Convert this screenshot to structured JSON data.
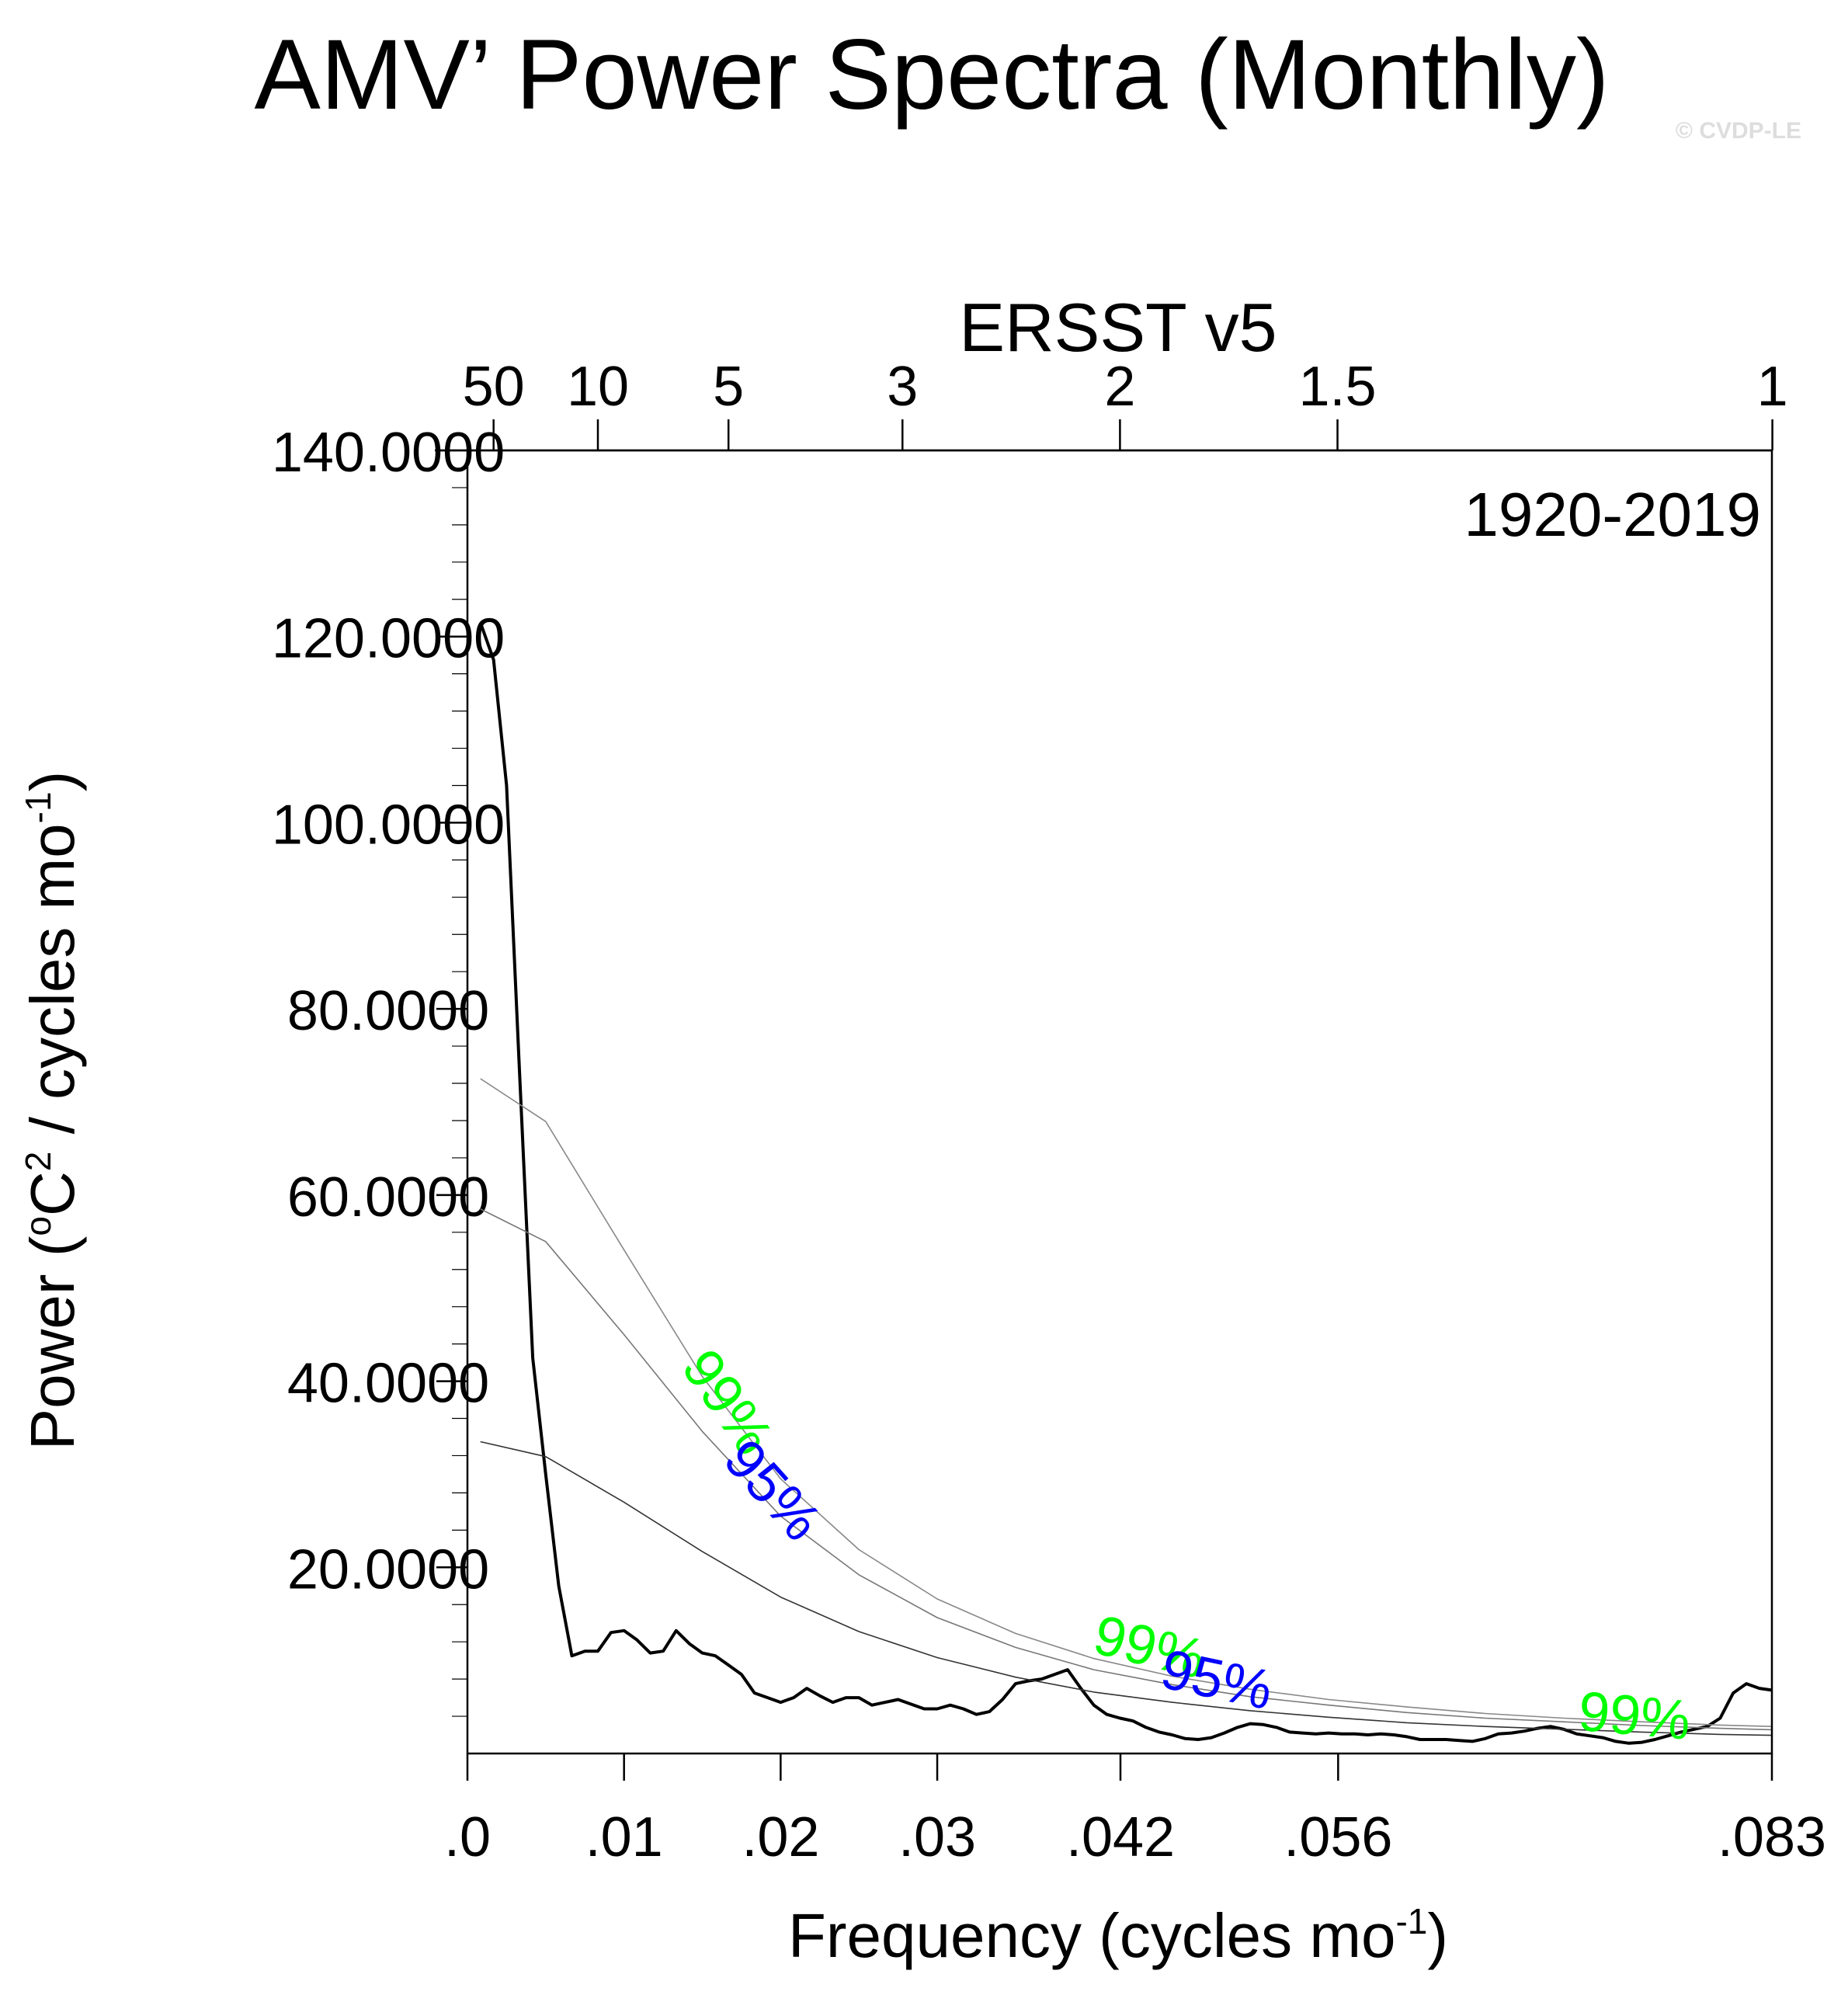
{
  "chart_data": {
    "type": "line",
    "title": "AMV’ Power Spectra (Monthly)",
    "watermark": "© CVDP-LE",
    "subtitle": "ERSST v5",
    "period_label": "1920-2019",
    "ylabel_parts": {
      "a": "Power (",
      "b": "o",
      "c": "C",
      "d": "2",
      "e": " / cycles mo",
      "f": "-1",
      "g": ")"
    },
    "xlabel_parts": {
      "a": "Frequency (cycles mo",
      "b": "-1",
      "c": ")"
    },
    "xlim": [
      0,
      0.0833
    ],
    "ylim": [
      0,
      140
    ],
    "y_ticks": [
      {
        "value": 20,
        "label": "20.0000"
      },
      {
        "value": 40,
        "label": "40.0000"
      },
      {
        "value": 60,
        "label": "60.0000"
      },
      {
        "value": 80,
        "label": "80.0000"
      },
      {
        "value": 100,
        "label": "100.0000"
      },
      {
        "value": 120,
        "label": "120.0000"
      },
      {
        "value": 140,
        "label": "140.0000"
      }
    ],
    "x_ticks": [
      {
        "value": 0,
        "label": ".0"
      },
      {
        "value": 0.01,
        "label": ".01"
      },
      {
        "value": 0.02,
        "label": ".02"
      },
      {
        "value": 0.03,
        "label": ".03"
      },
      {
        "value": 0.0417,
        "label": ".042"
      },
      {
        "value": 0.0556,
        "label": ".056"
      },
      {
        "value": 0.0833,
        "label": ".083"
      }
    ],
    "top_ticks": [
      {
        "value": 0.00167,
        "label": "50"
      },
      {
        "value": 0.00833,
        "label": "10"
      },
      {
        "value": 0.01667,
        "label": "5"
      },
      {
        "value": 0.02778,
        "label": "3"
      },
      {
        "value": 0.04167,
        "label": "2"
      },
      {
        "value": 0.05556,
        "label": "1.5"
      },
      {
        "value": 0.08333,
        "label": "1"
      }
    ],
    "series": [
      {
        "name": "spectrum",
        "color": "#000000",
        "x": [
          0.00083,
          0.00167,
          0.0025,
          0.00333,
          0.00417,
          0.005,
          0.00583,
          0.00667,
          0.0075,
          0.00833,
          0.00917,
          0.01,
          0.01083,
          0.01167,
          0.0125,
          0.01333,
          0.01417,
          0.015,
          0.01583,
          0.01667,
          0.0175,
          0.01833,
          0.01917,
          0.02,
          0.02083,
          0.02167,
          0.0225,
          0.02333,
          0.02417,
          0.025,
          0.02583,
          0.02667,
          0.0275,
          0.02833,
          0.02917,
          0.03,
          0.03083,
          0.03167,
          0.0325,
          0.03333,
          0.03417,
          0.035,
          0.03583,
          0.03667,
          0.0375,
          0.03833,
          0.03917,
          0.04,
          0.04083,
          0.04167,
          0.0425,
          0.04333,
          0.04417,
          0.045,
          0.04583,
          0.04667,
          0.0475,
          0.04833,
          0.04917,
          0.05,
          0.05083,
          0.05167,
          0.0525,
          0.05333,
          0.05417,
          0.055,
          0.05583,
          0.05667,
          0.0575,
          0.05833,
          0.05917,
          0.06,
          0.06083,
          0.06167,
          0.0625,
          0.06333,
          0.06417,
          0.065,
          0.06583,
          0.06667,
          0.0675,
          0.06833,
          0.06917,
          0.07,
          0.07083,
          0.07167,
          0.0725,
          0.07333,
          0.07417,
          0.075,
          0.07583,
          0.07667,
          0.0775,
          0.07833,
          0.07917,
          0.08,
          0.08083,
          0.08167,
          0.0825,
          0.08333
        ],
        "values": [
          121.5,
          117.5,
          104,
          73,
          42.5,
          30,
          18,
          10.5,
          11,
          11,
          13,
          13.2,
          12.2,
          10.8,
          11,
          13.2,
          11.8,
          10.8,
          10.5,
          9.5,
          8.5,
          6.5,
          6,
          5.5,
          6,
          7,
          6.2,
          5.5,
          6,
          6,
          5.2,
          5.5,
          5.8,
          5.3,
          4.8,
          4.8,
          5.2,
          4.8,
          4.2,
          4.5,
          5.8,
          7.5,
          7.8,
          8,
          8.5,
          9,
          7,
          5.2,
          4.2,
          3.8,
          3.5,
          2.8,
          2.3,
          2,
          1.6,
          1.5,
          1.7,
          2.2,
          2.8,
          3.2,
          3.1,
          2.8,
          2.3,
          2.2,
          2.1,
          2.2,
          2.1,
          2.1,
          2,
          2.1,
          2,
          1.8,
          1.5,
          1.5,
          1.5,
          1.4,
          1.3,
          1.6,
          2.1,
          2.2,
          2.4,
          2.7,
          2.9,
          2.6,
          2.1,
          1.9,
          1.7,
          1.3,
          1.1,
          1.2,
          1.5,
          1.9,
          2.3,
          2.6,
          2.9,
          3.8,
          6.5,
          7.5,
          7,
          6.8
        ]
      },
      {
        "name": "red-noise",
        "color": "#333333",
        "x": [
          0.00083,
          0.005,
          0.01,
          0.015,
          0.02,
          0.025,
          0.03,
          0.035,
          0.04,
          0.045,
          0.05,
          0.055,
          0.06,
          0.065,
          0.07,
          0.075,
          0.08,
          0.0833
        ],
        "values": [
          33.5,
          31.9,
          27,
          21.7,
          16.8,
          13.1,
          10.3,
          8.2,
          6.6,
          5.5,
          4.6,
          3.9,
          3.3,
          2.9,
          2.6,
          2.3,
          2.05,
          1.95
        ]
      },
      {
        "name": "95%",
        "color": "#777777",
        "x": [
          0.00083,
          0.005,
          0.01,
          0.015,
          0.02,
          0.025,
          0.03,
          0.035,
          0.04,
          0.045,
          0.05,
          0.055,
          0.06,
          0.065,
          0.07,
          0.075,
          0.08,
          0.0833
        ],
        "values": [
          58.5,
          55,
          45,
          34.6,
          25.5,
          19.2,
          14.6,
          11.4,
          9,
          7.4,
          6.1,
          5.2,
          4.4,
          3.8,
          3.4,
          3,
          2.7,
          2.55
        ]
      },
      {
        "name": "99%",
        "color": "#888888",
        "x": [
          0.00083,
          0.005,
          0.01,
          0.015,
          0.02,
          0.025,
          0.03,
          0.035,
          0.04,
          0.045,
          0.05,
          0.055,
          0.06,
          0.065,
          0.07,
          0.075,
          0.08,
          0.0833
        ],
        "values": [
          72.5,
          67.9,
          54.1,
          40.5,
          29.5,
          21.9,
          16.6,
          12.9,
          10.2,
          8.3,
          6.9,
          5.8,
          5,
          4.3,
          3.8,
          3.4,
          3.05,
          2.9
        ]
      }
    ],
    "curve_labels": [
      {
        "text": "99%",
        "color": "#00ff00",
        "x": 0.0164,
        "y": 37.5,
        "angle": 55
      },
      {
        "text": "95%",
        "color": "#0000ff",
        "x": 0.0193,
        "y": 28,
        "angle": 48
      },
      {
        "text": "99%",
        "color": "#00ff00",
        "x": 0.0435,
        "y": 11,
        "angle": 14
      },
      {
        "text": "95%",
        "color": "#0000ff",
        "x": 0.0478,
        "y": 7.5,
        "angle": 12
      },
      {
        "text": "99%",
        "color": "#00ff00",
        "x": 0.0745,
        "y": 3.6,
        "angle": 5
      }
    ]
  }
}
